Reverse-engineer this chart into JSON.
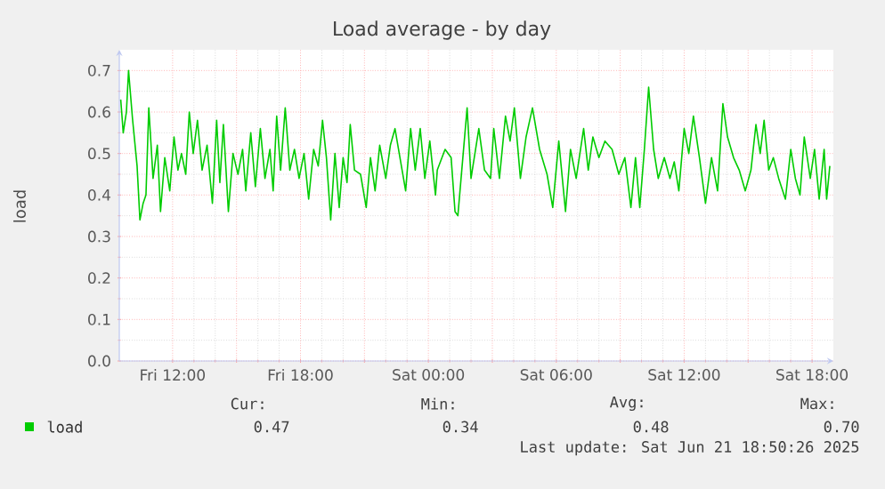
{
  "chart_data": {
    "type": "line",
    "title": "Load average - by day",
    "ylabel": "load",
    "x": [
      "2025-06-20T09:34",
      "2025-06-20T09:41",
      "2025-06-20T09:50",
      "2025-06-20T09:56",
      "2025-06-20T10:07",
      "2025-06-20T10:20",
      "2025-06-20T10:28",
      "2025-06-20T10:37",
      "2025-06-20T10:45",
      "2025-06-20T10:53",
      "2025-06-20T11:05",
      "2025-06-20T11:17",
      "2025-06-20T11:26",
      "2025-06-20T11:38",
      "2025-06-20T11:52",
      "2025-06-20T12:04",
      "2025-06-20T12:15",
      "2025-06-20T12:25",
      "2025-06-20T12:37",
      "2025-06-20T12:47",
      "2025-06-20T12:58",
      "2025-06-20T13:10",
      "2025-06-20T13:23",
      "2025-06-20T13:37",
      "2025-06-20T13:52",
      "2025-06-20T14:04",
      "2025-06-20T14:13",
      "2025-06-20T14:23",
      "2025-06-20T14:37",
      "2025-06-20T14:50",
      "2025-06-20T15:04",
      "2025-06-20T15:17",
      "2025-06-20T15:26",
      "2025-06-20T15:40",
      "2025-06-20T15:53",
      "2025-06-20T16:07",
      "2025-06-20T16:20",
      "2025-06-20T16:34",
      "2025-06-20T16:43",
      "2025-06-20T16:53",
      "2025-06-20T17:04",
      "2025-06-20T17:17",
      "2025-06-20T17:30",
      "2025-06-20T17:43",
      "2025-06-20T17:56",
      "2025-06-20T18:10",
      "2025-06-20T18:23",
      "2025-06-20T18:37",
      "2025-06-20T18:50",
      "2025-06-20T19:02",
      "2025-06-20T19:13",
      "2025-06-20T19:25",
      "2025-06-20T19:37",
      "2025-06-20T19:49",
      "2025-06-20T20:00",
      "2025-06-20T20:11",
      "2025-06-20T20:20",
      "2025-06-20T20:32",
      "2025-06-20T20:49",
      "2025-06-20T21:05",
      "2025-06-20T21:17",
      "2025-06-20T21:30",
      "2025-06-20T21:43",
      "2025-06-20T22:00",
      "2025-06-20T22:13",
      "2025-06-20T22:26",
      "2025-06-20T22:40",
      "2025-06-20T22:56",
      "2025-06-20T23:10",
      "2025-06-20T23:23",
      "2025-06-20T23:37",
      "2025-06-20T23:50",
      "2025-06-21T00:04",
      "2025-06-21T00:20",
      "2025-06-21T00:25",
      "2025-06-21T00:47",
      "2025-06-21T01:04",
      "2025-06-21T01:15",
      "2025-06-21T01:23",
      "2025-06-21T01:37",
      "2025-06-21T01:49",
      "2025-06-21T02:00",
      "2025-06-21T02:22",
      "2025-06-21T02:38",
      "2025-06-21T02:55",
      "2025-06-21T03:04",
      "2025-06-21T03:20",
      "2025-06-21T03:37",
      "2025-06-21T03:50",
      "2025-06-21T04:02",
      "2025-06-21T04:19",
      "2025-06-21T04:35",
      "2025-06-21T04:53",
      "2025-06-21T05:13",
      "2025-06-21T05:34",
      "2025-06-21T05:50",
      "2025-06-21T06:07",
      "2025-06-21T06:26",
      "2025-06-21T06:40",
      "2025-06-21T06:56",
      "2025-06-21T07:17",
      "2025-06-21T07:30",
      "2025-06-21T07:43",
      "2025-06-21T08:00",
      "2025-06-21T08:17",
      "2025-06-21T08:37",
      "2025-06-21T08:56",
      "2025-06-21T09:13",
      "2025-06-21T09:30",
      "2025-06-21T09:43",
      "2025-06-21T09:55",
      "2025-06-21T10:08",
      "2025-06-21T10:20",
      "2025-06-21T10:34",
      "2025-06-21T10:47",
      "2025-06-21T11:04",
      "2025-06-21T11:20",
      "2025-06-21T11:32",
      "2025-06-21T11:45",
      "2025-06-21T12:00",
      "2025-06-21T12:13",
      "2025-06-21T12:26",
      "2025-06-21T12:43",
      "2025-06-21T13:00",
      "2025-06-21T13:17",
      "2025-06-21T13:34",
      "2025-06-21T13:49",
      "2025-06-21T14:02",
      "2025-06-21T14:19",
      "2025-06-21T14:35",
      "2025-06-21T14:52",
      "2025-06-21T15:08",
      "2025-06-21T15:22",
      "2025-06-21T15:34",
      "2025-06-21T15:45",
      "2025-06-21T15:58",
      "2025-06-21T16:11",
      "2025-06-21T16:26",
      "2025-06-21T16:45",
      "2025-06-21T17:00",
      "2025-06-21T17:13",
      "2025-06-21T17:26",
      "2025-06-21T17:38",
      "2025-06-21T17:55",
      "2025-06-21T18:07",
      "2025-06-21T18:20",
      "2025-06-21T18:34",
      "2025-06-21T18:41",
      "2025-06-21T18:50"
    ],
    "series": [
      {
        "name": "load",
        "color": "#00cc00",
        "values": [
          0.63,
          0.55,
          0.6,
          0.7,
          0.585,
          0.47,
          0.34,
          0.38,
          0.4,
          0.61,
          0.44,
          0.52,
          0.36,
          0.49,
          0.41,
          0.54,
          0.46,
          0.5,
          0.45,
          0.6,
          0.5,
          0.58,
          0.46,
          0.52,
          0.38,
          0.58,
          0.43,
          0.57,
          0.36,
          0.5,
          0.45,
          0.51,
          0.41,
          0.55,
          0.42,
          0.56,
          0.44,
          0.51,
          0.41,
          0.59,
          0.46,
          0.61,
          0.46,
          0.51,
          0.44,
          0.5,
          0.39,
          0.51,
          0.47,
          0.58,
          0.49,
          0.34,
          0.5,
          0.37,
          0.49,
          0.43,
          0.57,
          0.46,
          0.45,
          0.37,
          0.49,
          0.41,
          0.52,
          0.44,
          0.52,
          0.56,
          0.49,
          0.41,
          0.56,
          0.46,
          0.56,
          0.44,
          0.53,
          0.4,
          0.46,
          0.51,
          0.49,
          0.36,
          0.35,
          0.49,
          0.61,
          0.44,
          0.56,
          0.46,
          0.44,
          0.56,
          0.44,
          0.59,
          0.53,
          0.61,
          0.44,
          0.54,
          0.61,
          0.51,
          0.45,
          0.37,
          0.53,
          0.36,
          0.51,
          0.44,
          0.56,
          0.46,
          0.54,
          0.49,
          0.53,
          0.51,
          0.45,
          0.49,
          0.37,
          0.49,
          0.37,
          0.51,
          0.66,
          0.51,
          0.44,
          0.49,
          0.44,
          0.48,
          0.41,
          0.56,
          0.5,
          0.59,
          0.49,
          0.38,
          0.49,
          0.41,
          0.62,
          0.54,
          0.49,
          0.46,
          0.41,
          0.46,
          0.57,
          0.5,
          0.58,
          0.46,
          0.49,
          0.44,
          0.39,
          0.51,
          0.44,
          0.4,
          0.54,
          0.44,
          0.51,
          0.39,
          0.51,
          0.39,
          0.47
        ]
      }
    ],
    "xlim": [
      "2025-06-20T09:30",
      "2025-06-21T19:00"
    ],
    "xticks": [
      {
        "value": "2025-06-20T12:00",
        "label": "Fri 12:00"
      },
      {
        "value": "2025-06-20T15:00",
        "label": null
      },
      {
        "value": "2025-06-20T18:00",
        "label": "Fri 18:00"
      },
      {
        "value": "2025-06-20T21:00",
        "label": null
      },
      {
        "value": "2025-06-21T00:00",
        "label": "Sat 00:00"
      },
      {
        "value": "2025-06-21T03:00",
        "label": null
      },
      {
        "value": "2025-06-21T06:00",
        "label": "Sat 06:00"
      },
      {
        "value": "2025-06-21T09:00",
        "label": null
      },
      {
        "value": "2025-06-21T12:00",
        "label": "Sat 12:00"
      },
      {
        "value": "2025-06-21T15:00",
        "label": null
      },
      {
        "value": "2025-06-21T18:00",
        "label": "Sat 18:00"
      }
    ],
    "ylim": [
      0,
      0.75
    ],
    "yticks": [
      {
        "value": 0,
        "label": "0.0"
      },
      0.1,
      0.2,
      0.3,
      0.4,
      0.5,
      0.6,
      0.7
    ],
    "grid": true,
    "legend": "bottom",
    "annotations": [
      "Cur:",
      "Min:",
      "Avg:",
      "Max:",
      "0.47",
      "0.34",
      "0.48",
      "0.70",
      "Last update: Sat Jun 21 18:50:26 2025"
    ]
  }
}
